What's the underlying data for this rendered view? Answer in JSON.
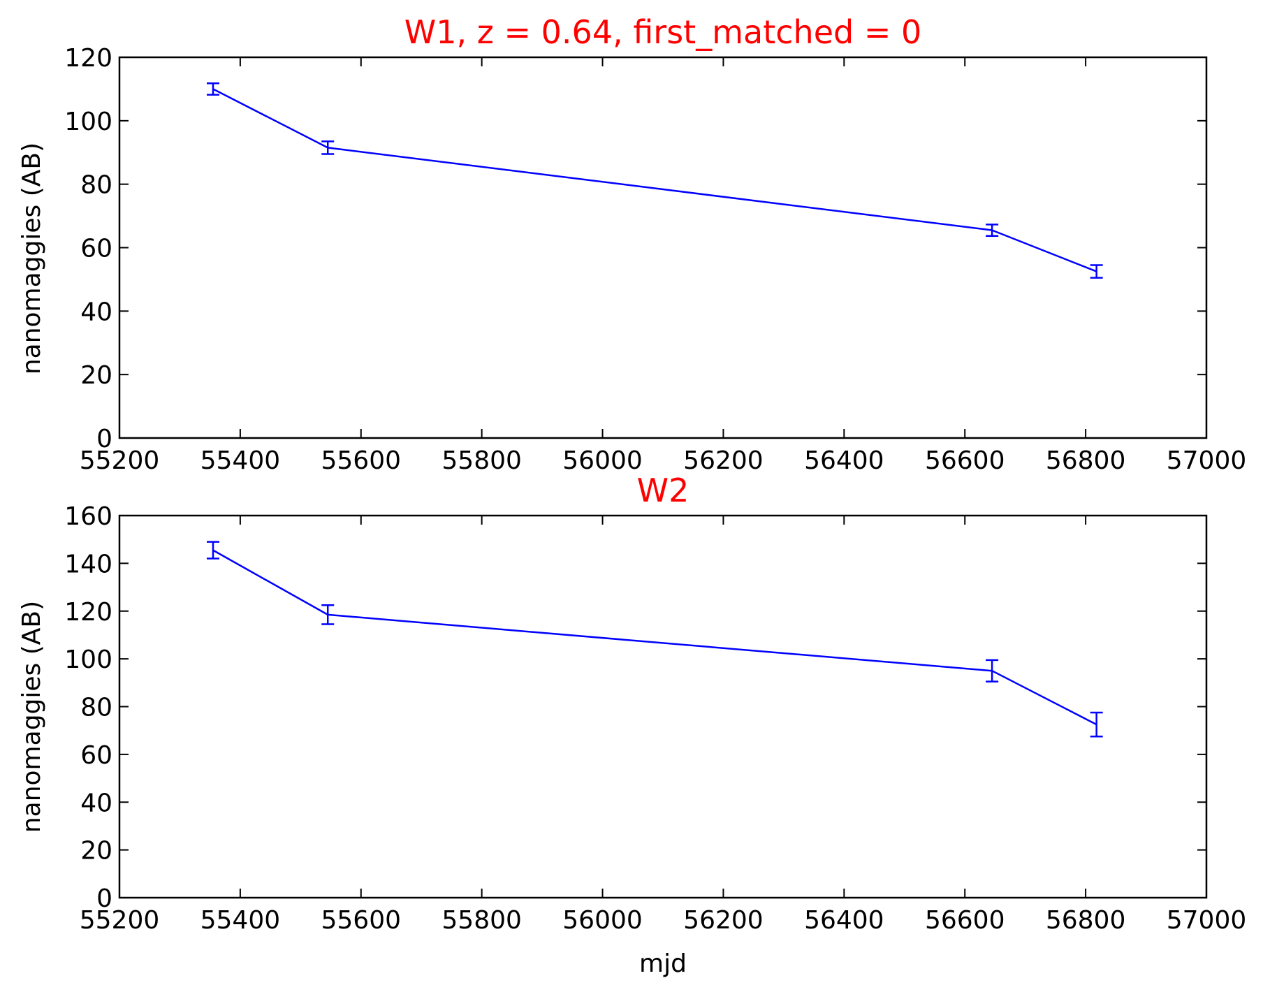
{
  "chart_data": [
    {
      "type": "line",
      "title": "W1, z = 0.64, first_matched = 0",
      "title_color": "#ff0000",
      "xlabel": "",
      "ylabel": "nanomaggies (AB)",
      "xlim": [
        55200,
        57000
      ],
      "ylim": [
        0,
        120
      ],
      "xticks": [
        55200,
        55400,
        55600,
        55800,
        56000,
        56200,
        56400,
        56600,
        56800,
        57000
      ],
      "yticks": [
        0,
        20,
        40,
        60,
        80,
        100,
        120
      ],
      "grid": false,
      "series": [
        {
          "color": "#0000ff",
          "x": [
            55355,
            55545,
            56645,
            56818
          ],
          "y": [
            110,
            91.5,
            65.5,
            52.5
          ],
          "yerr": [
            1.8,
            2.0,
            1.8,
            2.0
          ]
        }
      ]
    },
    {
      "type": "line",
      "title": "W2",
      "title_color": "#ff0000",
      "xlabel": "mjd",
      "ylabel": "nanomaggies (AB)",
      "xlim": [
        55200,
        57000
      ],
      "ylim": [
        0,
        160
      ],
      "xticks": [
        55200,
        55400,
        55600,
        55800,
        56000,
        56200,
        56400,
        56600,
        56800,
        57000
      ],
      "yticks": [
        0,
        20,
        40,
        60,
        80,
        100,
        120,
        140,
        160
      ],
      "grid": false,
      "series": [
        {
          "color": "#0000ff",
          "x": [
            55355,
            55545,
            56645,
            56818
          ],
          "y": [
            145.5,
            118.5,
            95,
            72.5
          ],
          "yerr": [
            3.5,
            4.0,
            4.5,
            5.0
          ]
        }
      ]
    }
  ]
}
